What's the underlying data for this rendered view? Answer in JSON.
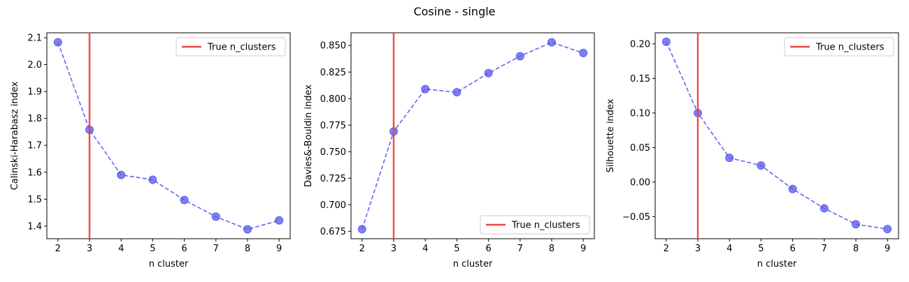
{
  "figure": {
    "title": "Cosine - single"
  },
  "chart_data": [
    {
      "type": "line",
      "xlabel": "n cluster",
      "ylabel": "Calinski-Harabasz index",
      "x": [
        2,
        3,
        4,
        5,
        6,
        7,
        8,
        9
      ],
      "series": [
        {
          "values": [
            2.083,
            1.758,
            1.59,
            1.572,
            1.497,
            1.435,
            1.388,
            1.421
          ],
          "color": "#5555ee",
          "style": "dashed",
          "marker": "circle"
        }
      ],
      "vline": {
        "x": 3,
        "label": "True n_clusters",
        "color": "#ee4444"
      },
      "legend_position": "top-right",
      "xlim": [
        1.65,
        9.35
      ],
      "ylim": [
        1.353,
        2.118
      ],
      "xticks": [
        2,
        3,
        4,
        5,
        6,
        7,
        8,
        9
      ],
      "yticks": [
        1.4,
        1.5,
        1.6,
        1.7,
        1.8,
        1.9,
        2.0,
        2.1
      ],
      "ytick_labels": [
        "1.4",
        "1.5",
        "1.6",
        "1.7",
        "1.8",
        "1.9",
        "2.0",
        "2.1"
      ],
      "grid": false
    },
    {
      "type": "line",
      "xlabel": "n cluster",
      "ylabel": "Davies&-Bouldin index",
      "x": [
        2,
        3,
        4,
        5,
        6,
        7,
        8,
        9
      ],
      "series": [
        {
          "values": [
            0.677,
            0.769,
            0.809,
            0.806,
            0.824,
            0.84,
            0.853,
            0.843
          ],
          "color": "#5555ee",
          "style": "dashed",
          "marker": "circle"
        }
      ],
      "vline": {
        "x": 3,
        "label": "True n_clusters",
        "color": "#ee4444"
      },
      "legend_position": "bottom-right",
      "xlim": [
        1.65,
        9.35
      ],
      "ylim": [
        0.668,
        0.862
      ],
      "xticks": [
        2,
        3,
        4,
        5,
        6,
        7,
        8,
        9
      ],
      "yticks": [
        0.675,
        0.7,
        0.725,
        0.75,
        0.775,
        0.8,
        0.825,
        0.85
      ],
      "ytick_labels": [
        "0.675",
        "0.700",
        "0.725",
        "0.750",
        "0.775",
        "0.800",
        "0.825",
        "0.850"
      ],
      "grid": false
    },
    {
      "type": "line",
      "xlabel": "n cluster",
      "ylabel": "Silhouette index",
      "x": [
        2,
        3,
        4,
        5,
        6,
        7,
        8,
        9
      ],
      "series": [
        {
          "values": [
            0.203,
            0.1,
            0.035,
            0.024,
            -0.01,
            -0.038,
            -0.061,
            -0.068
          ],
          "color": "#5555ee",
          "style": "dashed",
          "marker": "circle"
        }
      ],
      "vline": {
        "x": 3,
        "label": "True n_clusters",
        "color": "#ee4444"
      },
      "legend_position": "top-right",
      "xlim": [
        1.65,
        9.35
      ],
      "ylim": [
        -0.082,
        0.216
      ],
      "xticks": [
        2,
        3,
        4,
        5,
        6,
        7,
        8,
        9
      ],
      "yticks": [
        -0.05,
        0.0,
        0.05,
        0.1,
        0.15,
        0.2
      ],
      "ytick_labels": [
        "−0.05",
        "0.00",
        "0.05",
        "0.10",
        "0.15",
        "0.20"
      ],
      "grid": false
    }
  ]
}
